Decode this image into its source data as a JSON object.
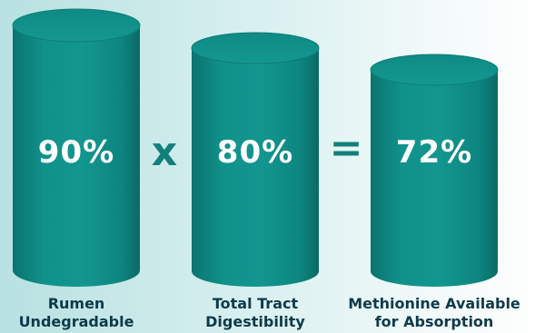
{
  "items": [
    {
      "value": "90%",
      "label_line1": "Rumen",
      "label_line2": "Undegradable"
    },
    {
      "value": "80%",
      "label_line1": "Total Tract",
      "label_line2": "Digestibility"
    },
    {
      "value": "72%",
      "label_line1": "Methionine Available",
      "label_line2": "for Absorption"
    }
  ],
  "operators": {
    "multiply": "x",
    "equals": "="
  },
  "colors": {
    "cylinder_body": "#0f8d86",
    "cylinder_top": "#138f89",
    "cylinder_shadow": "#0a6b66",
    "operator": "#137f79",
    "label_text": "#0d3a4a",
    "value_text": "#ffffff"
  }
}
